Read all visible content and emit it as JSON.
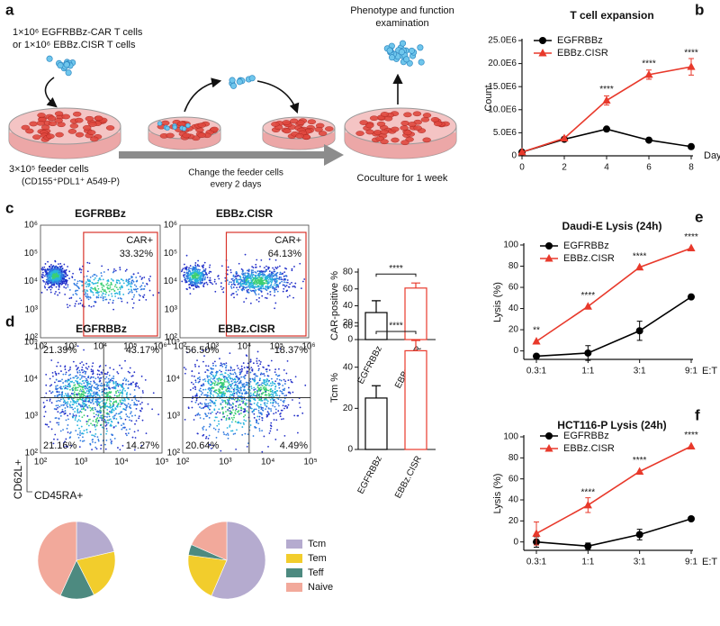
{
  "panel_labels": [
    "a",
    "b",
    "c",
    "d",
    "e",
    "f"
  ],
  "schematic": {
    "input": [
      "1×10⁶ EGFRBBz-CAR T cells",
      "or   1×10⁶ EBBz.CISR T cells"
    ],
    "feeder": [
      "3×10⁵ feeder cells",
      "(CD155⁺PDL1⁺ A549-P)"
    ],
    "change": [
      "Change the feeder cells",
      "every 2 days"
    ],
    "output": [
      "Phenotype and function",
      "examination"
    ],
    "coculture": "Coculture for 1 week"
  },
  "flow": {
    "ticks": [
      "10²",
      "10³",
      "10⁴",
      "10⁵",
      "10⁶"
    ],
    "car": [
      {
        "title": "EGFRBBz",
        "gate": "CAR+",
        "percent": "33.32%"
      },
      {
        "title": "EBBz.CISR",
        "gate": "CAR+",
        "percent": "64.13%"
      }
    ],
    "memory": [
      {
        "title": "EGFRBBz",
        "quadrants": [
          "21.39%",
          "43.17%",
          "21.16%",
          "14.27%"
        ]
      },
      {
        "title": "EBBz.CISR",
        "quadrants": [
          "56.50%",
          "18.37%",
          "20.64%",
          "4.49%"
        ]
      }
    ],
    "y_label": "CD62L+",
    "x_label": "CD45RA+"
  },
  "chart_data": [
    {
      "type": "line",
      "title": "T cell expansion",
      "x": [
        0,
        2,
        4,
        6,
        8
      ],
      "xlim": [
        0,
        8
      ],
      "xticks": [
        0,
        2,
        4,
        6,
        8
      ],
      "x_label": "Day",
      "y_label": "Count",
      "ylim": [
        0,
        25000000
      ],
      "yticks": [
        0,
        {
          "value": 5000000,
          "label": "5.0E6"
        },
        {
          "value": 10000000,
          "label": "10.0E6"
        },
        {
          "value": 15000000,
          "label": "15.0E6"
        },
        {
          "value": 20000000,
          "label": "20.0E6"
        },
        {
          "value": 25000000,
          "label": "25.0E6"
        }
      ],
      "legend": "upper left",
      "series": [
        {
          "name": "EGFRBBz",
          "color": "#000000",
          "marker": "circle",
          "values": [
            800000,
            3600000,
            5800000,
            3400000,
            2000000
          ],
          "errors": [
            0,
            0,
            0,
            0,
            0
          ]
        },
        {
          "name": "EBBz.CISR",
          "color": "#e8392b",
          "marker": "triangle",
          "values": [
            800000,
            3800000,
            12000000,
            17600000,
            19300000
          ],
          "errors": [
            0,
            0,
            1000000,
            1000000,
            1800000
          ]
        }
      ],
      "significance": [
        null,
        null,
        "****",
        "****",
        "****"
      ]
    },
    {
      "type": "bar",
      "categories": [
        "EGFRBBz",
        "EBBz.CISR"
      ],
      "values": [
        32,
        61
      ],
      "errors": [
        14,
        6
      ],
      "colors": [
        "#000000",
        "#e8392b"
      ],
      "y_label": "CAR-positive %",
      "ylim": [
        0,
        80
      ],
      "yticks": [
        0,
        20,
        40,
        60,
        80
      ],
      "significance": "****"
    },
    {
      "type": "bar",
      "categories": [
        "EGFRBBz",
        "EBBz.CISR"
      ],
      "values": [
        25,
        48
      ],
      "errors": [
        6,
        5
      ],
      "colors": [
        "#000000",
        "#e8392b"
      ],
      "y_label": "Tcm %",
      "ylim": [
        0,
        60
      ],
      "yticks": [
        0,
        20,
        40,
        60
      ],
      "significance": "****"
    },
    {
      "type": "line",
      "title": "Daudi-E Lysis (24h)",
      "categories": [
        "0.3:1",
        "1:1",
        "3:1",
        "9:1"
      ],
      "x_label": "E:T",
      "y_label": "Lysis (%)",
      "ylim": [
        -8,
        100
      ],
      "yticks": [
        0,
        20,
        40,
        60,
        80,
        100
      ],
      "legend": "upper left",
      "series": [
        {
          "name": "EGFRBBz",
          "color": "#000000",
          "marker": "circle",
          "values": [
            -5,
            -2,
            19,
            51
          ],
          "errors": [
            0,
            7,
            9,
            0
          ]
        },
        {
          "name": "EBBz.CISR",
          "color": "#e8392b",
          "marker": "triangle",
          "values": [
            9,
            42,
            79,
            97
          ],
          "errors": [
            0,
            0,
            0,
            0
          ]
        }
      ],
      "significance": [
        "**",
        "****",
        "****",
        "****"
      ]
    },
    {
      "type": "line",
      "title": "HCT116-P Lysis (24h)",
      "categories": [
        "0.3:1",
        "1:1",
        "3:1",
        "9:1"
      ],
      "x_label": "E:T",
      "y_label": "Lysis (%)",
      "ylim": [
        -8,
        100
      ],
      "yticks": [
        0,
        20,
        40,
        60,
        80,
        100
      ],
      "legend": "upper left",
      "series": [
        {
          "name": "EGFRBBz",
          "color": "#000000",
          "marker": "circle",
          "values": [
            0,
            -4,
            7,
            22
          ],
          "errors": [
            5,
            3,
            5,
            0
          ]
        },
        {
          "name": "EBBz.CISR",
          "color": "#e8392b",
          "marker": "triangle",
          "values": [
            8,
            35,
            67,
            91
          ],
          "errors": [
            11,
            7,
            0,
            0
          ]
        }
      ],
      "significance": [
        null,
        "****",
        "****",
        "****"
      ]
    },
    {
      "type": "pie",
      "values": [
        21.39,
        21.16,
        14.27,
        43.17
      ],
      "colors": [
        "#b5abcf",
        "#f2cd2c",
        "#4d8a80",
        "#f2a99b"
      ]
    },
    {
      "type": "pie",
      "labels": [
        "Tcm",
        "Tem",
        "Teff",
        "Naive"
      ],
      "values": [
        56.5,
        20.64,
        4.49,
        18.37
      ],
      "colors": [
        "#b5abcf",
        "#f2cd2c",
        "#4d8a80",
        "#f2a99b"
      ],
      "legend": "right"
    }
  ]
}
